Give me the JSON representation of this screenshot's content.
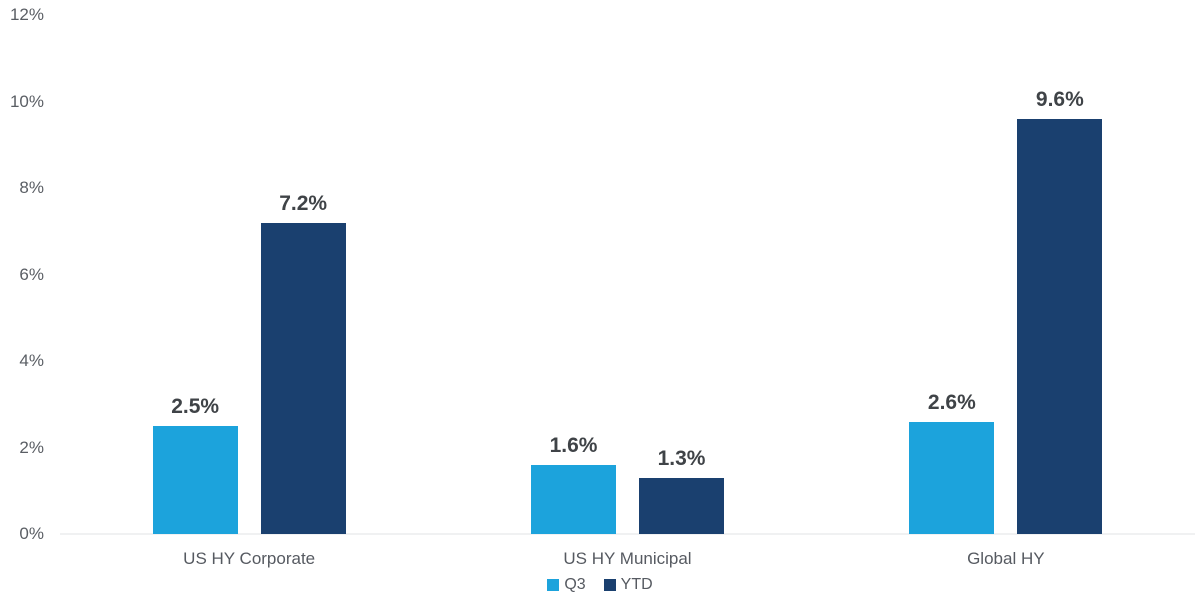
{
  "chart_data": {
    "type": "bar",
    "title": "",
    "xlabel": "",
    "ylabel": "",
    "categories": [
      "US HY Corporate",
      "US HY Municipal",
      "Global HY"
    ],
    "series": [
      {
        "name": "Q3",
        "color": "#1CA3DC",
        "values": [
          2.5,
          1.6,
          2.6
        ],
        "labels": [
          "2.5%",
          "1.6%",
          "2.6%"
        ]
      },
      {
        "name": "YTD",
        "color": "#1A406F",
        "values": [
          7.2,
          1.3,
          9.6
        ],
        "labels": [
          "7.2%",
          "1.3%",
          "9.6%"
        ]
      }
    ],
    "ylim": [
      0,
      12
    ],
    "yticks": [
      {
        "value": 0,
        "label": "0%"
      },
      {
        "value": 2,
        "label": "2%"
      },
      {
        "value": 4,
        "label": "4%"
      },
      {
        "value": 6,
        "label": "6%"
      },
      {
        "value": 8,
        "label": "8%"
      },
      {
        "value": 10,
        "label": "10%"
      },
      {
        "value": 12,
        "label": "12%"
      }
    ],
    "grid": false,
    "legend_position": "bottom",
    "legend": [
      "Q3",
      "YTD"
    ]
  },
  "colors": {
    "q3": "#1CA3DC",
    "ytd": "#1A406F",
    "axis_text": "#5a5e64",
    "data_label_text": "#3f4347",
    "baseline": "#f0f1f2",
    "background": "#ffffff"
  }
}
